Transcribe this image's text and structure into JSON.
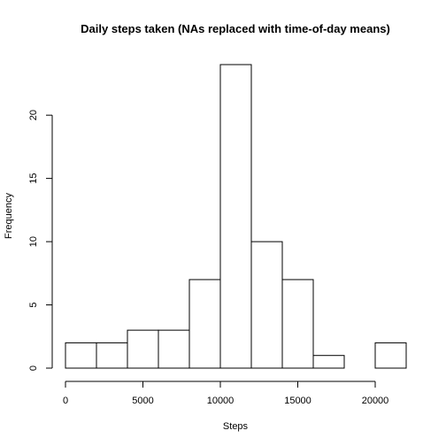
{
  "chart_data": {
    "type": "bar",
    "title": "Daily steps taken (NAs replaced with time-of-day means)",
    "xlabel": "Steps",
    "ylabel": "Frequency",
    "bins": [
      {
        "start": 0,
        "end": 2000,
        "count": 2
      },
      {
        "start": 2000,
        "end": 4000,
        "count": 2
      },
      {
        "start": 4000,
        "end": 6000,
        "count": 3
      },
      {
        "start": 6000,
        "end": 8000,
        "count": 3
      },
      {
        "start": 8000,
        "end": 10000,
        "count": 7
      },
      {
        "start": 10000,
        "end": 12000,
        "count": 24
      },
      {
        "start": 12000,
        "end": 14000,
        "count": 10
      },
      {
        "start": 14000,
        "end": 16000,
        "count": 7
      },
      {
        "start": 16000,
        "end": 18000,
        "count": 1
      },
      {
        "start": 18000,
        "end": 20000,
        "count": 0
      },
      {
        "start": 20000,
        "end": 22000,
        "count": 2
      }
    ],
    "x_ticks": [
      0,
      5000,
      10000,
      15000,
      20000
    ],
    "y_ticks": [
      0,
      5,
      10,
      15,
      20
    ],
    "xlim": [
      0,
      22000
    ],
    "ylim": [
      0,
      24
    ],
    "grid": false,
    "legend": "none"
  }
}
